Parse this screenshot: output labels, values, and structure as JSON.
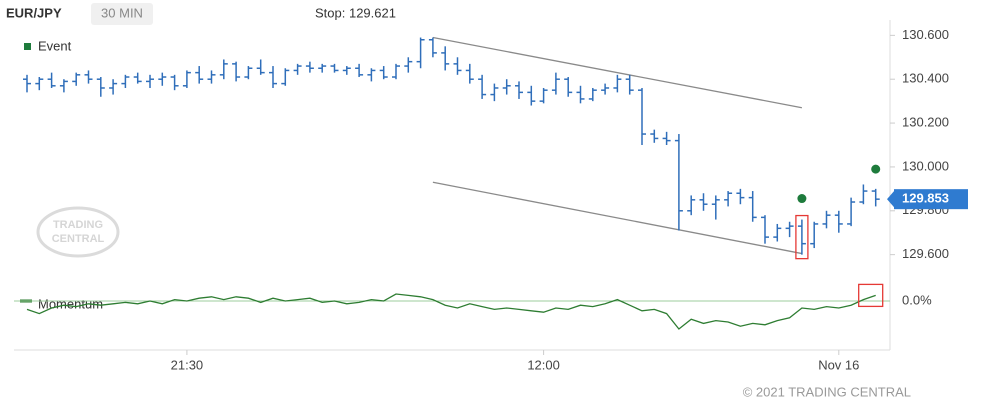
{
  "chart_data": {
    "type": "ohlc",
    "title": "EUR/JPY",
    "interval": "30 MIN",
    "stop": "Stop: 129.621",
    "watermark": [
      "TRADING",
      "CENTRAL"
    ],
    "copyright": "© 2021 TRADING CENTRAL",
    "categories": [
      null,
      null,
      null,
      null,
      null,
      null,
      null,
      null,
      null,
      null,
      null,
      null,
      null,
      "21:30",
      null,
      null,
      null,
      null,
      null,
      null,
      null,
      null,
      null,
      null,
      null,
      null,
      null,
      null,
      null,
      null,
      null,
      null,
      null,
      null,
      null,
      null,
      null,
      null,
      null,
      null,
      null,
      null,
      "12:00",
      null,
      null,
      null,
      null,
      null,
      null,
      null,
      null,
      null,
      null,
      null,
      null,
      null,
      null,
      null,
      null,
      null,
      null,
      null,
      null,
      null,
      null,
      null,
      "Nov 16",
      null,
      null,
      null
    ],
    "color": "#2f6eba",
    "open": [
      130.4,
      130.38,
      130.4,
      130.37,
      130.39,
      130.42,
      130.4,
      130.36,
      130.38,
      130.41,
      130.39,
      130.4,
      130.41,
      130.37,
      130.43,
      130.4,
      130.42,
      130.47,
      130.41,
      130.45,
      130.43,
      130.38,
      130.44,
      130.46,
      130.45,
      130.46,
      130.44,
      130.45,
      130.42,
      130.44,
      130.41,
      130.46,
      130.48,
      130.58,
      130.52,
      130.47,
      130.44,
      130.4,
      130.33,
      130.36,
      130.37,
      130.34,
      130.3,
      130.35,
      130.4,
      130.34,
      130.31,
      130.35,
      130.36,
      130.4,
      130.35,
      130.15,
      130.13,
      130.12,
      129.8,
      129.85,
      129.83,
      129.85,
      129.88,
      129.86,
      129.77,
      129.68,
      129.72,
      129.73,
      129.65,
      129.74,
      129.78,
      129.74,
      129.84,
      129.89
    ],
    "high": [
      130.42,
      130.41,
      130.43,
      130.4,
      130.43,
      130.44,
      130.41,
      130.4,
      130.42,
      130.43,
      130.42,
      130.43,
      130.42,
      130.44,
      130.46,
      130.44,
      130.49,
      130.48,
      130.46,
      130.49,
      130.46,
      130.45,
      130.47,
      130.48,
      130.47,
      130.47,
      130.46,
      130.47,
      130.45,
      130.46,
      130.47,
      130.5,
      130.59,
      130.59,
      130.55,
      130.5,
      130.47,
      130.42,
      130.38,
      130.4,
      130.39,
      130.37,
      130.36,
      130.43,
      130.41,
      130.37,
      130.36,
      130.38,
      130.42,
      130.42,
      130.36,
      130.17,
      130.16,
      130.15,
      129.87,
      129.88,
      129.87,
      129.89,
      129.9,
      129.89,
      129.78,
      129.74,
      129.75,
      129.76,
      129.75,
      129.8,
      129.8,
      129.86,
      129.92,
      129.9
    ],
    "low": [
      130.34,
      130.35,
      130.36,
      130.34,
      130.37,
      130.38,
      130.32,
      130.33,
      130.36,
      130.38,
      130.36,
      130.37,
      130.35,
      130.36,
      130.38,
      130.38,
      130.4,
      130.39,
      130.4,
      130.42,
      130.36,
      130.37,
      130.42,
      130.43,
      130.43,
      130.43,
      130.42,
      130.41,
      130.39,
      130.4,
      130.4,
      130.43,
      130.45,
      130.5,
      130.44,
      130.42,
      130.38,
      130.31,
      130.3,
      130.33,
      130.31,
      130.28,
      130.29,
      130.33,
      130.32,
      130.29,
      130.3,
      130.33,
      130.34,
      130.33,
      130.1,
      130.11,
      130.1,
      129.71,
      129.78,
      129.8,
      129.76,
      129.82,
      129.83,
      129.75,
      129.65,
      129.66,
      129.68,
      129.6,
      129.63,
      129.72,
      129.7,
      129.73,
      129.83,
      129.82
    ],
    "close": [
      130.38,
      130.4,
      130.37,
      130.39,
      130.42,
      130.4,
      130.36,
      130.38,
      130.41,
      130.39,
      130.4,
      130.41,
      130.37,
      130.43,
      130.4,
      130.42,
      130.47,
      130.41,
      130.45,
      130.43,
      130.38,
      130.44,
      130.46,
      130.45,
      130.46,
      130.44,
      130.45,
      130.42,
      130.44,
      130.41,
      130.46,
      130.48,
      130.58,
      130.52,
      130.47,
      130.44,
      130.4,
      130.33,
      130.36,
      130.37,
      130.34,
      130.3,
      130.35,
      130.4,
      130.34,
      130.31,
      130.35,
      130.36,
      130.4,
      130.35,
      130.15,
      130.13,
      130.12,
      129.8,
      129.85,
      129.83,
      129.85,
      129.88,
      129.86,
      129.77,
      129.68,
      129.72,
      129.73,
      129.65,
      129.74,
      129.78,
      129.74,
      129.84,
      129.89,
      129.853
    ],
    "ylim": [
      129.53,
      130.67
    ],
    "yticks": [
      {
        "value": 130.6,
        "label": "130.600"
      },
      {
        "value": 130.4,
        "label": "130.400"
      },
      {
        "value": 130.2,
        "label": "130.200"
      },
      {
        "value": 130.0,
        "label": "130.000"
      },
      {
        "value": 129.8,
        "label": "129.800"
      },
      {
        "value": 129.6,
        "label": "129.600"
      }
    ],
    "channels": [
      {
        "color": "#8a8a8a",
        "x": [
          33,
          63
        ],
        "values": [
          130.59,
          130.27
        ]
      },
      {
        "color": "#8a8a8a",
        "x": [
          33,
          63
        ],
        "values": [
          129.93,
          129.605
        ]
      }
    ],
    "events": {
      "name": "Event",
      "color": "#1e7b3c",
      "x": [
        63,
        69
      ],
      "values": [
        129.856,
        129.99
      ]
    },
    "momentum": {
      "name": "Momentum",
      "color": "#2e7d32",
      "values": [
        -0.06,
        -0.09,
        -0.05,
        -0.03,
        -0.04,
        -0.02,
        -0.03,
        -0.02,
        -0.01,
        -0.02,
        0.0,
        -0.02,
        0.01,
        0.0,
        0.02,
        0.03,
        0.01,
        0.03,
        0.02,
        -0.01,
        0.02,
        0.0,
        0.01,
        0.02,
        -0.01,
        0.0,
        -0.02,
        -0.01,
        0.01,
        0.0,
        0.05,
        0.04,
        0.03,
        0.01,
        -0.03,
        -0.05,
        -0.02,
        -0.04,
        -0.06,
        -0.05,
        -0.06,
        -0.07,
        -0.08,
        -0.05,
        -0.06,
        -0.03,
        -0.04,
        -0.02,
        0.01,
        -0.03,
        -0.07,
        -0.06,
        -0.09,
        -0.2,
        -0.13,
        -0.16,
        -0.14,
        -0.15,
        -0.18,
        -0.16,
        -0.17,
        -0.14,
        -0.12,
        -0.05,
        -0.06,
        -0.04,
        -0.05,
        -0.03,
        0.01,
        0.04
      ],
      "ylim": [
        -0.35,
        0.15
      ],
      "yticks": [
        {
          "value": 0,
          "label": "0.0%"
        }
      ]
    }
  }
}
